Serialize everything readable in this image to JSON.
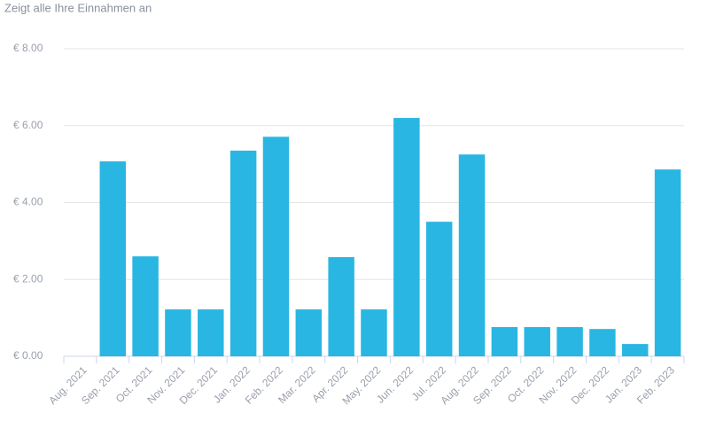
{
  "chart_data": {
    "type": "bar",
    "subtitle": "Zeigt alle Ihre Einnahmen an",
    "categories": [
      "Aug. 2021",
      "Sep. 2021",
      "Oct. 2021",
      "Nov. 2021",
      "Dec. 2021",
      "Jan. 2022",
      "Feb. 2022",
      "Mar. 2022",
      "Apr. 2022",
      "May. 2022",
      "Jun. 2022",
      "Jul. 2022",
      "Aug. 2022",
      "Sep. 2022",
      "Oct. 2022",
      "Nov. 2022",
      "Dec. 2022",
      "Jan. 2023",
      "Feb. 2023"
    ],
    "values": [
      0,
      5.07,
      2.6,
      1.22,
      1.22,
      5.35,
      5.71,
      1.22,
      2.58,
      1.22,
      6.2,
      3.5,
      5.25,
      0.76,
      0.76,
      0.76,
      0.71,
      0.32,
      4.86
    ],
    "color": "#29b6e3",
    "ylim": [
      0,
      8
    ],
    "yticks": [
      {
        "value": 0,
        "label": "€ 0.00"
      },
      {
        "value": 2,
        "label": "€ 2.00"
      },
      {
        "value": 4,
        "label": "€ 4.00"
      },
      {
        "value": 6,
        "label": "€ 6.00"
      },
      {
        "value": 8,
        "label": "€ 8.00"
      }
    ],
    "grid": true
  }
}
